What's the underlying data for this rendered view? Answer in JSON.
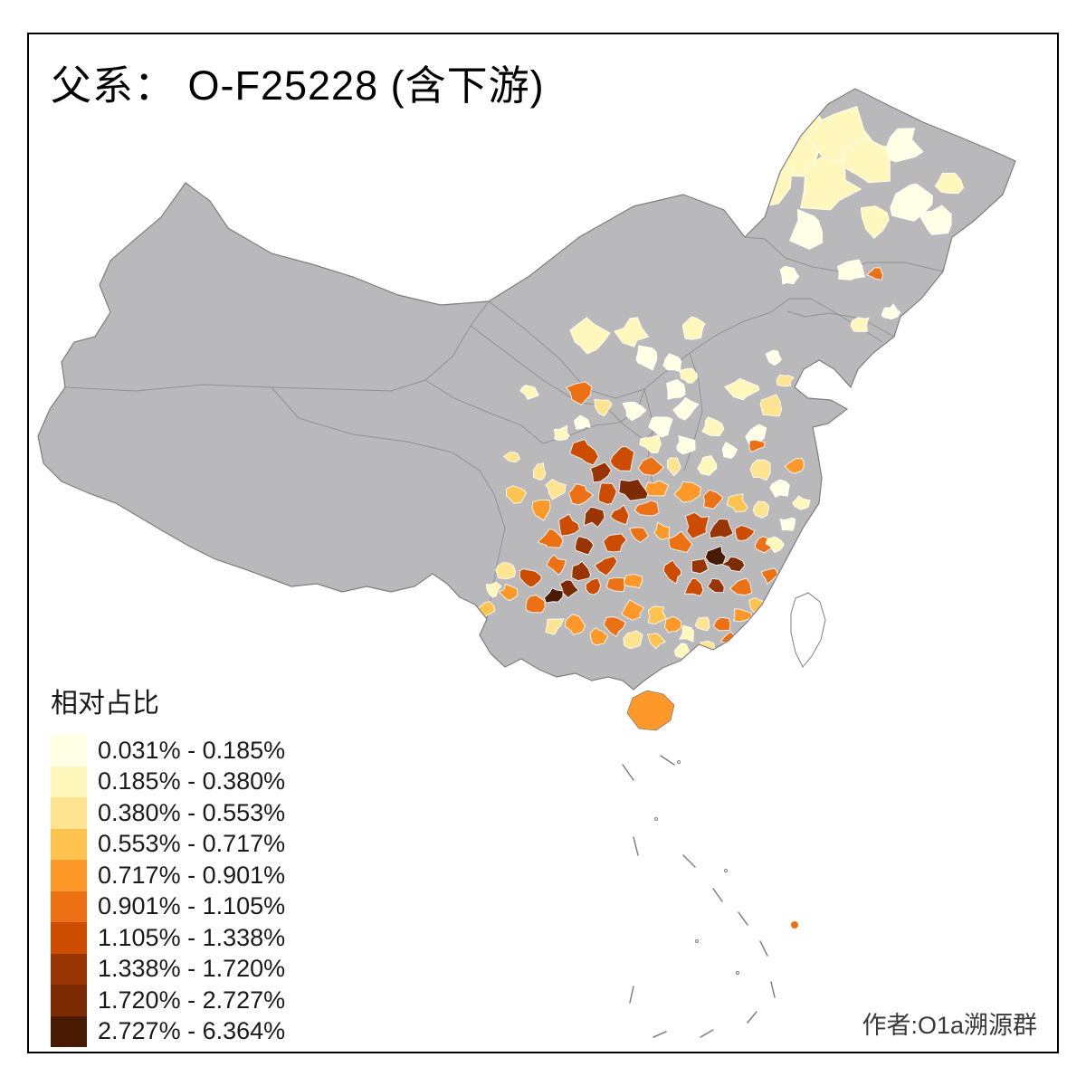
{
  "title": "父系： O-F25228 (含下游)",
  "legend": {
    "title": "相对占比",
    "entries": [
      {
        "label": "0.031% - 0.185%",
        "color": "#FFFFE5"
      },
      {
        "label": "0.185% - 0.380%",
        "color": "#FFF7BC"
      },
      {
        "label": "0.380% - 0.553%",
        "color": "#FEE391"
      },
      {
        "label": "0.553% - 0.717%",
        "color": "#FEC44F"
      },
      {
        "label": "0.717% - 0.901%",
        "color": "#FE9929"
      },
      {
        "label": "0.901% - 1.105%",
        "color": "#EC7014"
      },
      {
        "label": "1.105% - 1.338%",
        "color": "#CC4C02"
      },
      {
        "label": "1.338% - 1.720%",
        "color": "#993404"
      },
      {
        "label": "1.720% - 2.727%",
        "color": "#7C2B04"
      },
      {
        "label": "2.727% - 6.364%",
        "color": "#4A1B03"
      }
    ]
  },
  "attribution": "作者:O1a溯源群",
  "map": {
    "no_data_color": "#b9b9bc",
    "boundary_color": "#919195",
    "coast_color": "#7e7e83",
    "background_color": "#ffffff"
  }
}
